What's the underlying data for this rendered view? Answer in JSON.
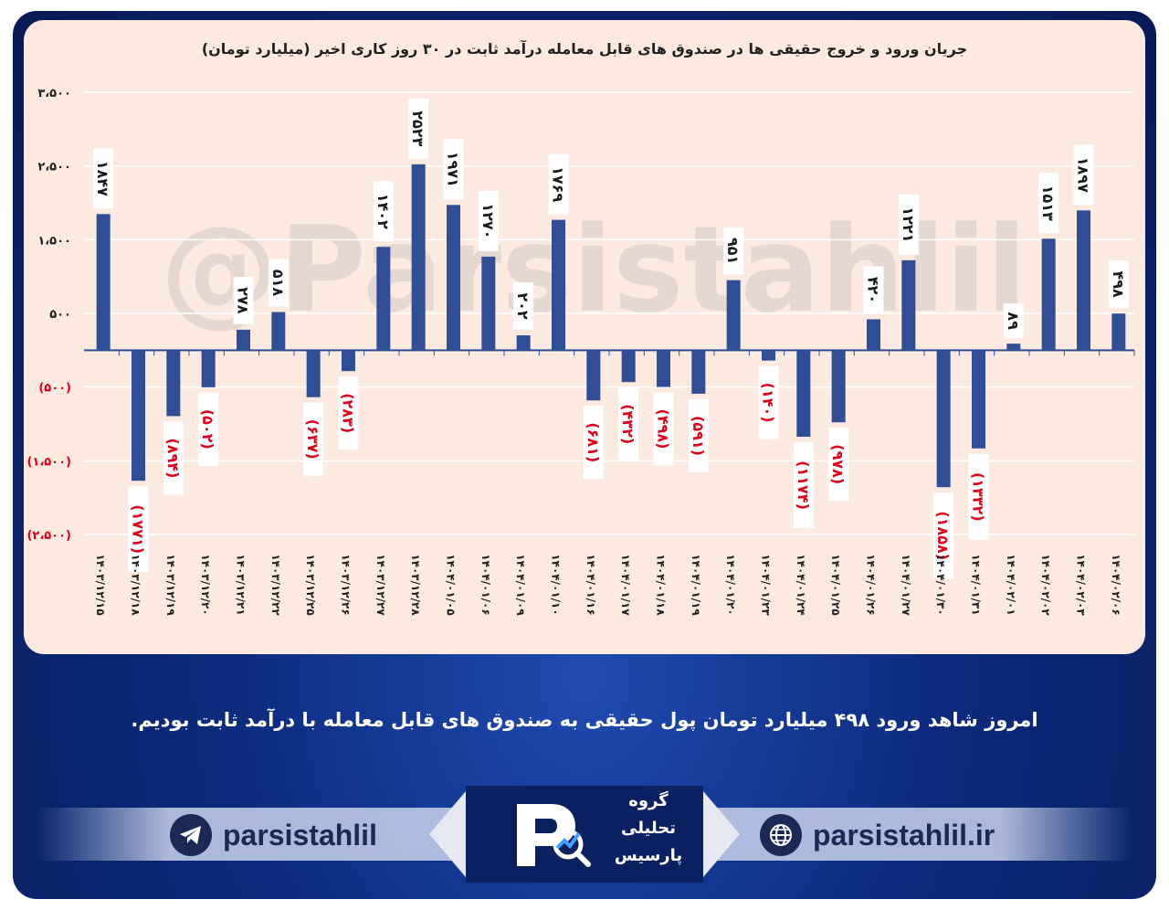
{
  "chart_data": {
    "type": "bar",
    "title": "جریان ورود و خروج حقیقی ها در صندوق های قابل معامله درآمد ثابت در ۳۰ روز کاری اخیر (میلیارد تومان)",
    "watermark": "@Parsistahlil",
    "ylim": [
      -2500,
      3500
    ],
    "yticks": [
      {
        "value": 3500,
        "label": "۳،۵۰۰"
      },
      {
        "value": 2500,
        "label": "۲،۵۰۰"
      },
      {
        "value": 1500,
        "label": "۱،۵۰۰"
      },
      {
        "value": 500,
        "label": "۵۰۰"
      },
      {
        "value": -500,
        "label": "(۵۰۰)"
      },
      {
        "value": -1500,
        "label": "(۱،۵۰۰)"
      },
      {
        "value": -2500,
        "label": "(۲،۵۰۰)"
      }
    ],
    "bar_color": "#2f4e96",
    "negative_label_color": "#e0001b",
    "positive_label_color": "#1a1a1a",
    "categories": [
      "۱۴۰۳/۱۲/۱۵",
      "۱۴۰۳/۱۲/۱۸",
      "۱۴۰۳/۱۲/۱۹",
      "۱۴۰۳/۱۲/۲۰",
      "۱۴۰۳/۱۲/۲۱",
      "۱۴۰۳/۱۲/۲۲",
      "۱۴۰۳/۱۲/۲۵",
      "۱۴۰۳/۱۲/۲۶",
      "۱۴۰۳/۱۲/۲۷",
      "۱۴۰۳/۱۲/۲۸",
      "۱۴۰۴/۰۱/۰۵",
      "۱۴۰۴/۰۱/۰۶",
      "۱۴۰۴/۰۱/۰۹",
      "۱۴۰۴/۰۱/۱۰",
      "۱۴۰۴/۰۱/۱۶",
      "۱۴۰۴/۰۱/۱۷",
      "۱۴۰۴/۰۱/۱۸",
      "۱۴۰۴/۰۱/۱۹",
      "۱۴۰۴/۰۱/۲۰",
      "۱۴۰۴/۰۱/۲۳",
      "۱۴۰۴/۰۱/۲۴",
      "۱۴۰۴/۰۱/۲۵",
      "۱۴۰۴/۰۱/۲۶",
      "۱۴۰۴/۰۱/۲۷",
      "۱۴۰۴/۰۱/۳۰",
      "۱۴۰۴/۰۱/۳۱",
      "۱۴۰۴/۰۲/۰۱",
      "۱۴۰۴/۰۲/۰۲",
      "۱۴۰۴/۰۲/۰۳",
      "۱۴۰۴/۰۲/۰۶"
    ],
    "values": [
      1847,
      -1771,
      -894,
      -502,
      278,
      518,
      -637,
      -283,
      1402,
      2523,
      1971,
      1270,
      202,
      1769,
      -681,
      -432,
      -498,
      -591,
      951,
      -140,
      -1174,
      -978,
      420,
      1221,
      -1858,
      -1332,
      89,
      1513,
      1897,
      498
    ],
    "data_labels": [
      "۱۸۴۷",
      "(۱۷۷۱)",
      "(۸۹۴)",
      "(۵۰۲)",
      "۲۷۸",
      "۵۱۸",
      "(۶۳۷)",
      "(۲۸۳)",
      "۱۴۰۲",
      "۲۵۲۳",
      "۱۹۷۱",
      "۱۲۷۰",
      "۲۰۲",
      "۱۷۶۹",
      "(۶۸۱)",
      "(۴۳۲)",
      "(۴۹۸)",
      "(۵۹۱)",
      "۹۵۱",
      "(۱۴۰)",
      "(۱۱۷۴)",
      "(۹۷۸)",
      "۴۲۰",
      "۱۲۲۱",
      "(۱۸۵۸)",
      "(۱۳۳۲)",
      "۸۹",
      "۱۵۱۳",
      "۱۸۹۷",
      "۴۹۸"
    ]
  },
  "summary": "امروز شاهد ورود ۴۹۸ میلیارد تومان پول حقیقی به صندوق های قابل معامله با درآمد ثابت بودیم.",
  "footer": {
    "telegram_handle": "parsistahlil",
    "website": "parsistahlil.ir",
    "logo_text": [
      "گروه",
      "تحلیلی",
      "پارسیس"
    ],
    "telegram_icon": "telegram-icon",
    "web_icon": "globe-icon",
    "colors": {
      "brand_dark": "#1b2a55",
      "frame": "#0c2a7c"
    }
  }
}
